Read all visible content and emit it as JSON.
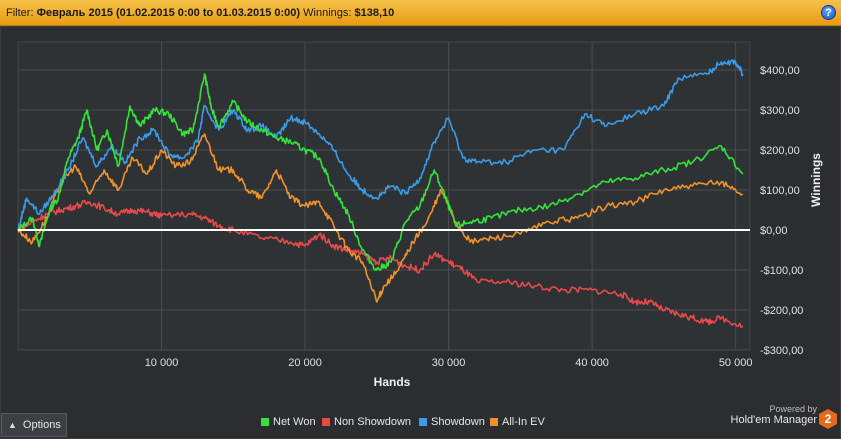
{
  "header": {
    "filter_label": "Filter:",
    "filter_value": "Февраль 2015 (01.02.2015 0:00 to 01.03.2015 0:00)",
    "winnings_label": "Winnings:",
    "winnings_value": "$138,10",
    "help_glyph": "?"
  },
  "options": {
    "label": "Options",
    "icon": "chevron-up-icon"
  },
  "brand": {
    "powered_by": "Powered by",
    "name": "Hold'em Manager",
    "logo_text": "2"
  },
  "chart_data": {
    "type": "line",
    "xlabel": "Hands",
    "ylabel": "Winnings",
    "xlim": [
      0,
      51000
    ],
    "ylim": [
      -300,
      470
    ],
    "x_ticks": [
      10000,
      20000,
      30000,
      40000,
      50000
    ],
    "x_tick_labels": [
      "10 000",
      "20 000",
      "30 000",
      "40 000",
      "50 000"
    ],
    "y_ticks": [
      400,
      300,
      200,
      100,
      0,
      -100,
      -200,
      -300
    ],
    "y_tick_labels": [
      "$400,00",
      "$300,00",
      "$200,00",
      "$100,00",
      "$0,00",
      "-$100,00",
      "-$200,00",
      "-$300,00"
    ],
    "zero_line": true,
    "grid": true,
    "legend_position": "bottom",
    "series": [
      {
        "name": "Net Won",
        "color": "#36e23a",
        "x": [
          0,
          1000,
          1500,
          2200,
          2800,
          3500,
          4200,
          4800,
          5500,
          6200,
          7000,
          7800,
          8500,
          9500,
          10500,
          11500,
          12200,
          13000,
          13500,
          14000,
          15000,
          16000,
          17000,
          18000,
          19000,
          20000,
          21000,
          22000,
          23000,
          24000,
          25000,
          26000,
          27000,
          28000,
          29000,
          29800,
          30500,
          31500,
          33000,
          35000,
          37000,
          39000,
          41000,
          43000,
          45000,
          47000,
          49000,
          50500
        ],
        "y": [
          0,
          30,
          -40,
          50,
          80,
          180,
          230,
          300,
          200,
          250,
          160,
          310,
          260,
          300,
          290,
          240,
          250,
          390,
          300,
          260,
          320,
          270,
          250,
          230,
          220,
          200,
          180,
          100,
          40,
          -50,
          -100,
          -80,
          20,
          60,
          150,
          80,
          10,
          20,
          30,
          50,
          60,
          90,
          120,
          130,
          150,
          170,
          210,
          140
        ]
      },
      {
        "name": "Non Showdown",
        "color": "#e84a4a",
        "x": [
          0,
          1000,
          2000,
          3000,
          4000,
          5000,
          6000,
          7000,
          8000,
          9000,
          10000,
          12000,
          13000,
          14000,
          15000,
          17000,
          19000,
          20000,
          21000,
          22000,
          23000,
          24000,
          25000,
          26000,
          27000,
          28000,
          29000,
          30000,
          31000,
          32000,
          34000,
          36000,
          38000,
          40000,
          42000,
          43000,
          44000,
          45000,
          46000,
          47000,
          48000,
          49000,
          50500
        ],
        "y": [
          0,
          20,
          40,
          50,
          60,
          70,
          55,
          40,
          50,
          45,
          35,
          40,
          30,
          10,
          0,
          -20,
          -30,
          -40,
          -10,
          -40,
          -50,
          -60,
          -80,
          -70,
          -90,
          -100,
          -60,
          -80,
          -100,
          -130,
          -130,
          -140,
          -150,
          -150,
          -160,
          -180,
          -180,
          -200,
          -210,
          -220,
          -230,
          -220,
          -240
        ]
      },
      {
        "name": "Showdown",
        "color": "#3a9be6",
        "x": [
          0,
          600,
          1500,
          2500,
          3500,
          4500,
          5500,
          6500,
          7500,
          8500,
          9500,
          10500,
          11500,
          12500,
          13000,
          14000,
          15000,
          16000,
          17000,
          18000,
          19000,
          20000,
          21000,
          22000,
          23000,
          24000,
          25000,
          26000,
          27000,
          28000,
          29000,
          30000,
          31000,
          32000,
          34000,
          36000,
          38000,
          39500,
          41000,
          43000,
          45000,
          46000,
          48000,
          49000,
          50000,
          50500
        ],
        "y": [
          0,
          80,
          40,
          90,
          150,
          230,
          160,
          210,
          170,
          230,
          250,
          190,
          180,
          220,
          310,
          250,
          300,
          250,
          260,
          230,
          280,
          270,
          240,
          200,
          140,
          100,
          80,
          110,
          90,
          130,
          220,
          280,
          180,
          170,
          170,
          200,
          200,
          290,
          260,
          290,
          310,
          380,
          390,
          420,
          420,
          390
        ]
      },
      {
        "name": "All-In EV",
        "color": "#f0922a",
        "x": [
          0,
          1000,
          2000,
          3000,
          4000,
          5000,
          6000,
          7000,
          8000,
          9000,
          10000,
          11000,
          12000,
          13000,
          14000,
          15000,
          16000,
          17000,
          18000,
          19000,
          20000,
          21000,
          22000,
          23000,
          24000,
          25000,
          25500,
          26500,
          27500,
          28500,
          29500,
          30500,
          31500,
          33000,
          35000,
          37000,
          39000,
          41000,
          43000,
          45000,
          47000,
          49000,
          50500
        ],
        "y": [
          0,
          -30,
          30,
          120,
          160,
          90,
          150,
          100,
          180,
          140,
          200,
          160,
          170,
          240,
          150,
          150,
          100,
          80,
          150,
          80,
          60,
          70,
          10,
          -50,
          -80,
          -180,
          -140,
          -100,
          -30,
          20,
          100,
          20,
          -30,
          -20,
          -10,
          20,
          30,
          60,
          70,
          100,
          110,
          120,
          90
        ]
      }
    ]
  }
}
